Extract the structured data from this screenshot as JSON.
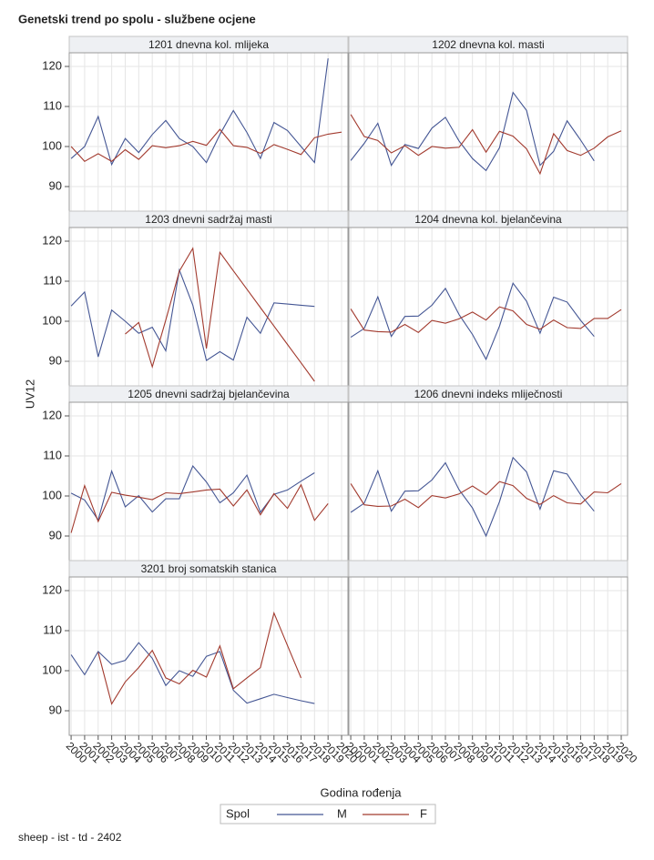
{
  "chart_data": {
    "type": "line",
    "title": "Genetski trend po spolu - službene ocjene",
    "footnote": "sheep - ist - td - 2402",
    "x_label": "Godina rođenja",
    "y_label": "UV12",
    "legend_title": "Spol",
    "x": [
      2000,
      2001,
      2002,
      2003,
      2004,
      2005,
      2006,
      2007,
      2008,
      2009,
      2010,
      2011,
      2012,
      2013,
      2014,
      2015,
      2016,
      2017,
      2018,
      2019,
      2020
    ],
    "xlim": [
      1999.86,
      2020.47
    ],
    "xticks": [
      2000,
      2001,
      2002,
      2003,
      2004,
      2005,
      2006,
      2007,
      2008,
      2009,
      2010,
      2011,
      2012,
      2013,
      2014,
      2015,
      2016,
      2017,
      2018,
      2019,
      2020
    ],
    "ylim": [
      83.86,
      123.41
    ],
    "yticks": [
      90,
      100,
      110,
      120
    ],
    "grid": true,
    "panels": [
      {
        "title": "1201 dnevna kol. mlijeka",
        "series": [
          {
            "name": "M",
            "color": "#445694",
            "values": [
              97,
              100,
              107.5,
              95.5,
              102,
              98.5,
              103,
              106.5,
              102,
              100,
              96,
              103,
              109,
              103.5,
              97,
              106,
              104,
              100,
              96,
              122,
              null
            ]
          },
          {
            "name": "F",
            "color": "#a23a2e",
            "values": [
              100,
              96.3,
              98.2,
              96.3,
              99.2,
              96.8,
              100.2,
              99.7,
              100.2,
              101.3,
              100.3,
              104.3,
              100.2,
              99.8,
              98.3,
              100.5,
              99.3,
              98,
              102.2,
              103.1,
              103.6
            ]
          }
        ]
      },
      {
        "title": "1202 dnevna kol. masti",
        "series": [
          {
            "name": "M",
            "color": "#445694",
            "values": [
              96.5,
              100.8,
              105.8,
              95.3,
              100.5,
              99.5,
              104.6,
              107.3,
              101.4,
              97,
              94,
              99.7,
              113.5,
              109,
              95.3,
              98.8,
              106.4,
              101.6,
              96.4,
              null,
              null
            ]
          },
          {
            "name": "F",
            "color": "#a23a2e",
            "values": [
              108,
              102.5,
              101.5,
              98.4,
              100.2,
              97.8,
              100,
              99.6,
              99.8,
              104.2,
              98.6,
              103.8,
              102.6,
              99.4,
              93.2,
              103.2,
              99,
              97.8,
              99.6,
              102.4,
              103.9
            ]
          }
        ]
      },
      {
        "title": "1203 dnevni sadržaj masti",
        "series": [
          {
            "name": "M",
            "color": "#445694",
            "values": [
              103.8,
              107.3,
              91.1,
              102.8,
              100,
              97,
              98.5,
              92.6,
              112.8,
              104,
              90.2,
              92.4,
              90.3,
              101,
              97,
              104.6,
              104.3,
              104,
              103.7,
              null,
              null
            ]
          },
          {
            "name": "F",
            "color": "#a23a2e",
            "values": [
              null,
              null,
              null,
              null,
              96.8,
              99.7,
              88.6,
              100.3,
              112.5,
              118.2,
              93.2,
              117.2,
              112.6,
              108,
              103.4,
              98.8,
              94.2,
              89.6,
              85,
              null,
              null
            ]
          }
        ]
      },
      {
        "title": "1204 dnevna kol. bjelančevina",
        "series": [
          {
            "name": "M",
            "color": "#445694",
            "values": [
              96,
              98.2,
              106.1,
              96.2,
              101.2,
              101.3,
              104,
              108.2,
              101.7,
              96.7,
              90.5,
              98.8,
              109.5,
              105,
              97,
              106,
              104.8,
              100.2,
              96.2,
              null,
              null
            ]
          },
          {
            "name": "F",
            "color": "#a23a2e",
            "values": [
              103.1,
              97.8,
              97.4,
              97.3,
              99.2,
              97.2,
              100.2,
              99.5,
              100.6,
              102.3,
              100.3,
              103.6,
              102.6,
              99.2,
              98,
              100.3,
              98.4,
              98.2,
              100.7,
              100.7,
              102.9
            ]
          }
        ]
      },
      {
        "title": "1205 dnevni sadržaj bjelančevina",
        "series": [
          {
            "name": "M",
            "color": "#445694",
            "values": [
              100.7,
              99,
              94,
              106.2,
              97.3,
              100.1,
              96,
              99.3,
              99.3,
              107.5,
              103.5,
              98.3,
              100.8,
              105.2,
              95.9,
              100.4,
              101.5,
              103.7,
              105.8,
              null,
              null
            ]
          },
          {
            "name": "F",
            "color": "#a23a2e",
            "values": [
              90.8,
              102.6,
              93.6,
              100.9,
              100.2,
              99.7,
              99.1,
              100.8,
              100.6,
              101,
              101.5,
              101.7,
              97.5,
              101.5,
              95.3,
              100.6,
              96.9,
              102.8,
              93.9,
              98.1,
              null
            ]
          }
        ]
      },
      {
        "title": "1206 dnevni indeks mliječnosti",
        "series": [
          {
            "name": "M",
            "color": "#445694",
            "values": [
              95.9,
              98.2,
              106.3,
              96.2,
              101.2,
              101.3,
              104,
              108.3,
              101.6,
              97,
              90,
              98.6,
              109.6,
              106,
              96.7,
              106.3,
              105.5,
              100.3,
              96.2,
              null,
              null
            ]
          },
          {
            "name": "F",
            "color": "#a23a2e",
            "values": [
              103.1,
              97.8,
              97.4,
              97.5,
              99.2,
              97.1,
              100.1,
              99.5,
              100.5,
              102.5,
              100.3,
              103.6,
              102.6,
              99.4,
              97.9,
              100.1,
              98.3,
              98,
              101,
              100.8,
              103.1
            ]
          }
        ]
      },
      {
        "title": "3201 broj somatskih stanica",
        "series": [
          {
            "name": "M",
            "color": "#445694",
            "values": [
              104,
              99,
              104.8,
              101.6,
              102.6,
              107,
              103.1,
              96.3,
              100,
              98.6,
              103.6,
              104.8,
              95.1,
              91.9,
              93,
              94.1,
              93.3,
              92.5,
              91.8,
              null,
              null
            ]
          },
          {
            "name": "F",
            "color": "#a23a2e",
            "values": [
              null,
              null,
              104.6,
              91.7,
              97.2,
              100.8,
              105.1,
              98.2,
              96.7,
              100.1,
              98.4,
              106.2,
              95.5,
              98.2,
              100.8,
              114.4,
              106.3,
              98.2,
              null,
              null,
              null
            ]
          }
        ]
      }
    ]
  }
}
